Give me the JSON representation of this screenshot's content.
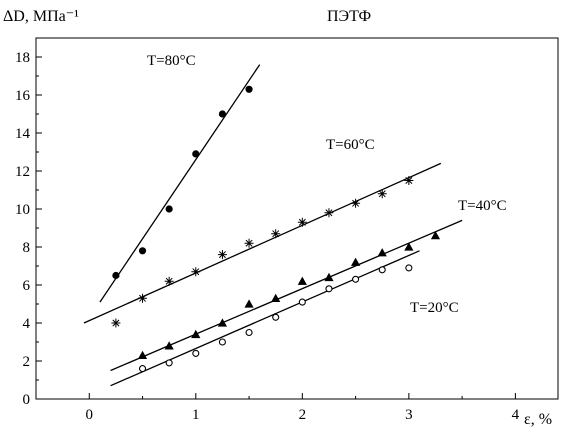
{
  "chart_data": {
    "type": "scatter",
    "title": "ПЭТФ",
    "xlabel": "ε, %",
    "ylabel": "ΔD, МПа⁻¹",
    "xlim": [
      -0.5,
      4.4
    ],
    "ylim": [
      0,
      19
    ],
    "x_ticks": [
      0,
      1,
      2,
      3,
      4
    ],
    "y_ticks": [
      0,
      2,
      4,
      6,
      8,
      10,
      12,
      14,
      16,
      18
    ],
    "grid": false,
    "legend": "none",
    "series": [
      {
        "name": "T=80°C",
        "marker": "filled-circle",
        "x": [
          0.25,
          0.5,
          0.75,
          1.0,
          1.25,
          1.5
        ],
        "y": [
          6.5,
          7.8,
          10.0,
          12.9,
          15.0,
          16.3
        ],
        "fit_line": {
          "x": [
            0.1,
            1.6
          ],
          "y": [
            5.1,
            17.6
          ]
        }
      },
      {
        "name": "T=60°C",
        "marker": "asterisk",
        "x": [
          0.25,
          0.5,
          0.75,
          1.0,
          1.25,
          1.5,
          1.75,
          2.0,
          2.25,
          2.5,
          2.75,
          3.0
        ],
        "y": [
          4.0,
          5.3,
          6.2,
          6.7,
          7.6,
          8.2,
          8.7,
          9.3,
          9.8,
          10.3,
          10.8,
          11.5
        ],
        "fit_line": {
          "x": [
            -0.05,
            3.3
          ],
          "y": [
            4.0,
            12.4
          ]
        }
      },
      {
        "name": "T=40°C",
        "marker": "filled-triangle",
        "x": [
          0.5,
          0.75,
          1.0,
          1.25,
          1.5,
          1.75,
          2.0,
          2.25,
          2.5,
          2.75,
          3.0,
          3.25
        ],
        "y": [
          2.3,
          2.8,
          3.4,
          4.0,
          5.0,
          5.3,
          6.2,
          6.4,
          7.2,
          7.7,
          8.0,
          8.6
        ],
        "fit_line": {
          "x": [
            0.2,
            3.5
          ],
          "y": [
            1.5,
            9.4
          ]
        }
      },
      {
        "name": "T=20°C",
        "marker": "open-circle",
        "x": [
          0.5,
          0.75,
          1.0,
          1.25,
          1.5,
          1.75,
          2.0,
          2.25,
          2.5,
          2.75,
          3.0
        ],
        "y": [
          1.6,
          1.9,
          2.4,
          3.0,
          3.5,
          4.3,
          5.1,
          5.8,
          6.3,
          6.8,
          6.9
        ],
        "fit_line": {
          "x": [
            0.2,
            3.1
          ],
          "y": [
            0.7,
            7.8
          ]
        }
      }
    ]
  }
}
